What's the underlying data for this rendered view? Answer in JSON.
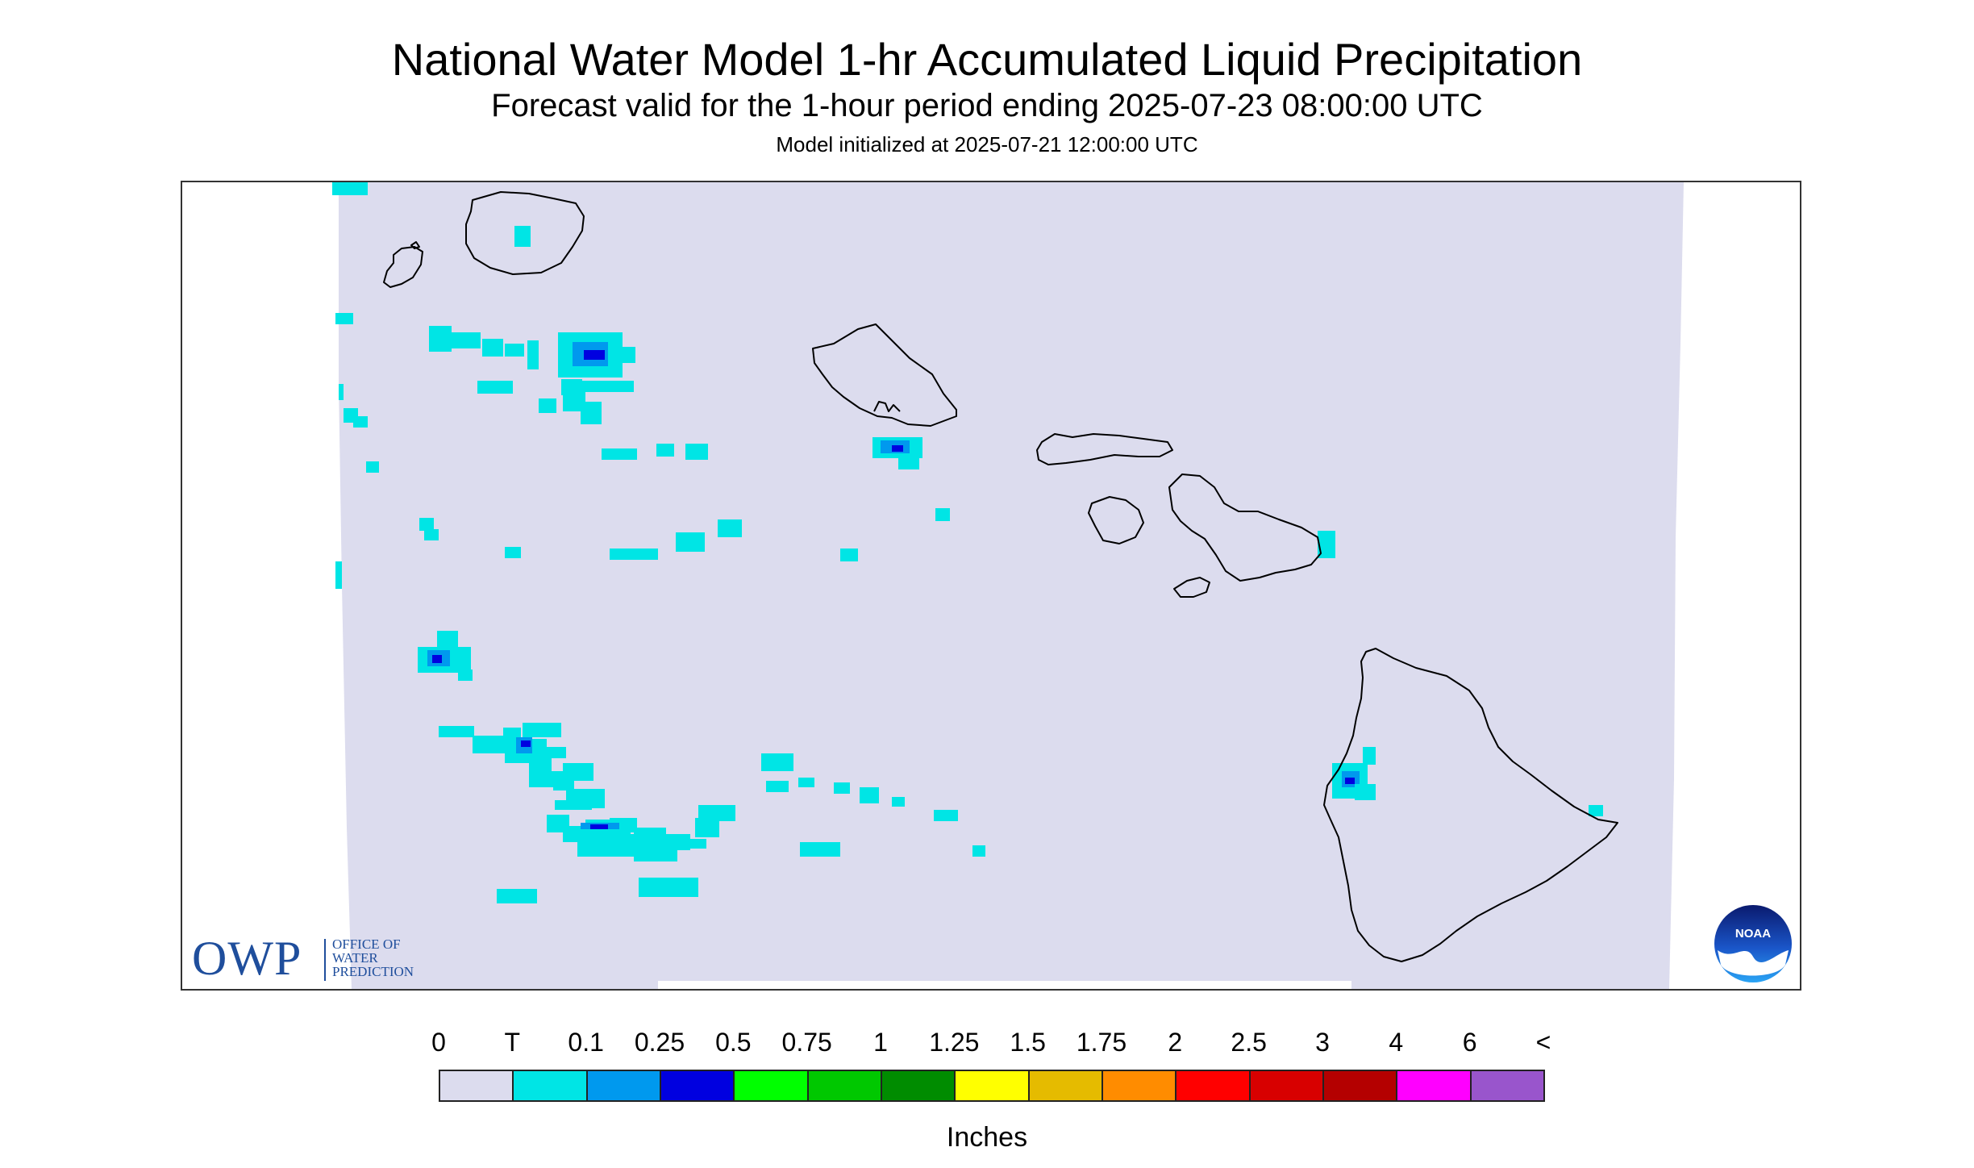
{
  "header": {
    "title": "National Water Model 1-hr Accumulated Liquid Precipitation",
    "subtitle": "Forecast valid for the 1-hour period ending 2025-07-23 08:00:00 UTC",
    "init": "Model initialized at 2025-07-21 12:00:00 UTC"
  },
  "map": {
    "domain_color": "#dcdcee",
    "outside_color": "#ffffff",
    "coast_color": "#000000",
    "islands": [
      "Kauai",
      "Niihau",
      "Oahu",
      "Molokai",
      "Lanai",
      "Maui",
      "Kahoolawe",
      "Hawaii"
    ],
    "precip_colors": {
      "trace": "#00e5e5",
      "low": "#0099ee",
      "mid": "#0000e0"
    }
  },
  "logos": {
    "owp": {
      "big": "OWP",
      "line1": "OFFICE OF",
      "line2": "WATER",
      "line3": "PREDICTION"
    },
    "noaa": {
      "text": "NOAA"
    }
  },
  "legend": {
    "ticks": [
      "0",
      "T",
      "0.1",
      "0.25",
      "0.5",
      "0.75",
      "1",
      "1.25",
      "1.5",
      "1.75",
      "2",
      "2.5",
      "3",
      "4",
      "6",
      "<"
    ],
    "colors": [
      "#dcdcee",
      "#00e5e5",
      "#0099ee",
      "#0000e0",
      "#00ff00",
      "#00c800",
      "#008c00",
      "#ffff00",
      "#e5bb00",
      "#ff8c00",
      "#ff0000",
      "#d80000",
      "#b40000",
      "#ff00ff",
      "#9955cc"
    ],
    "units": "Inches"
  }
}
